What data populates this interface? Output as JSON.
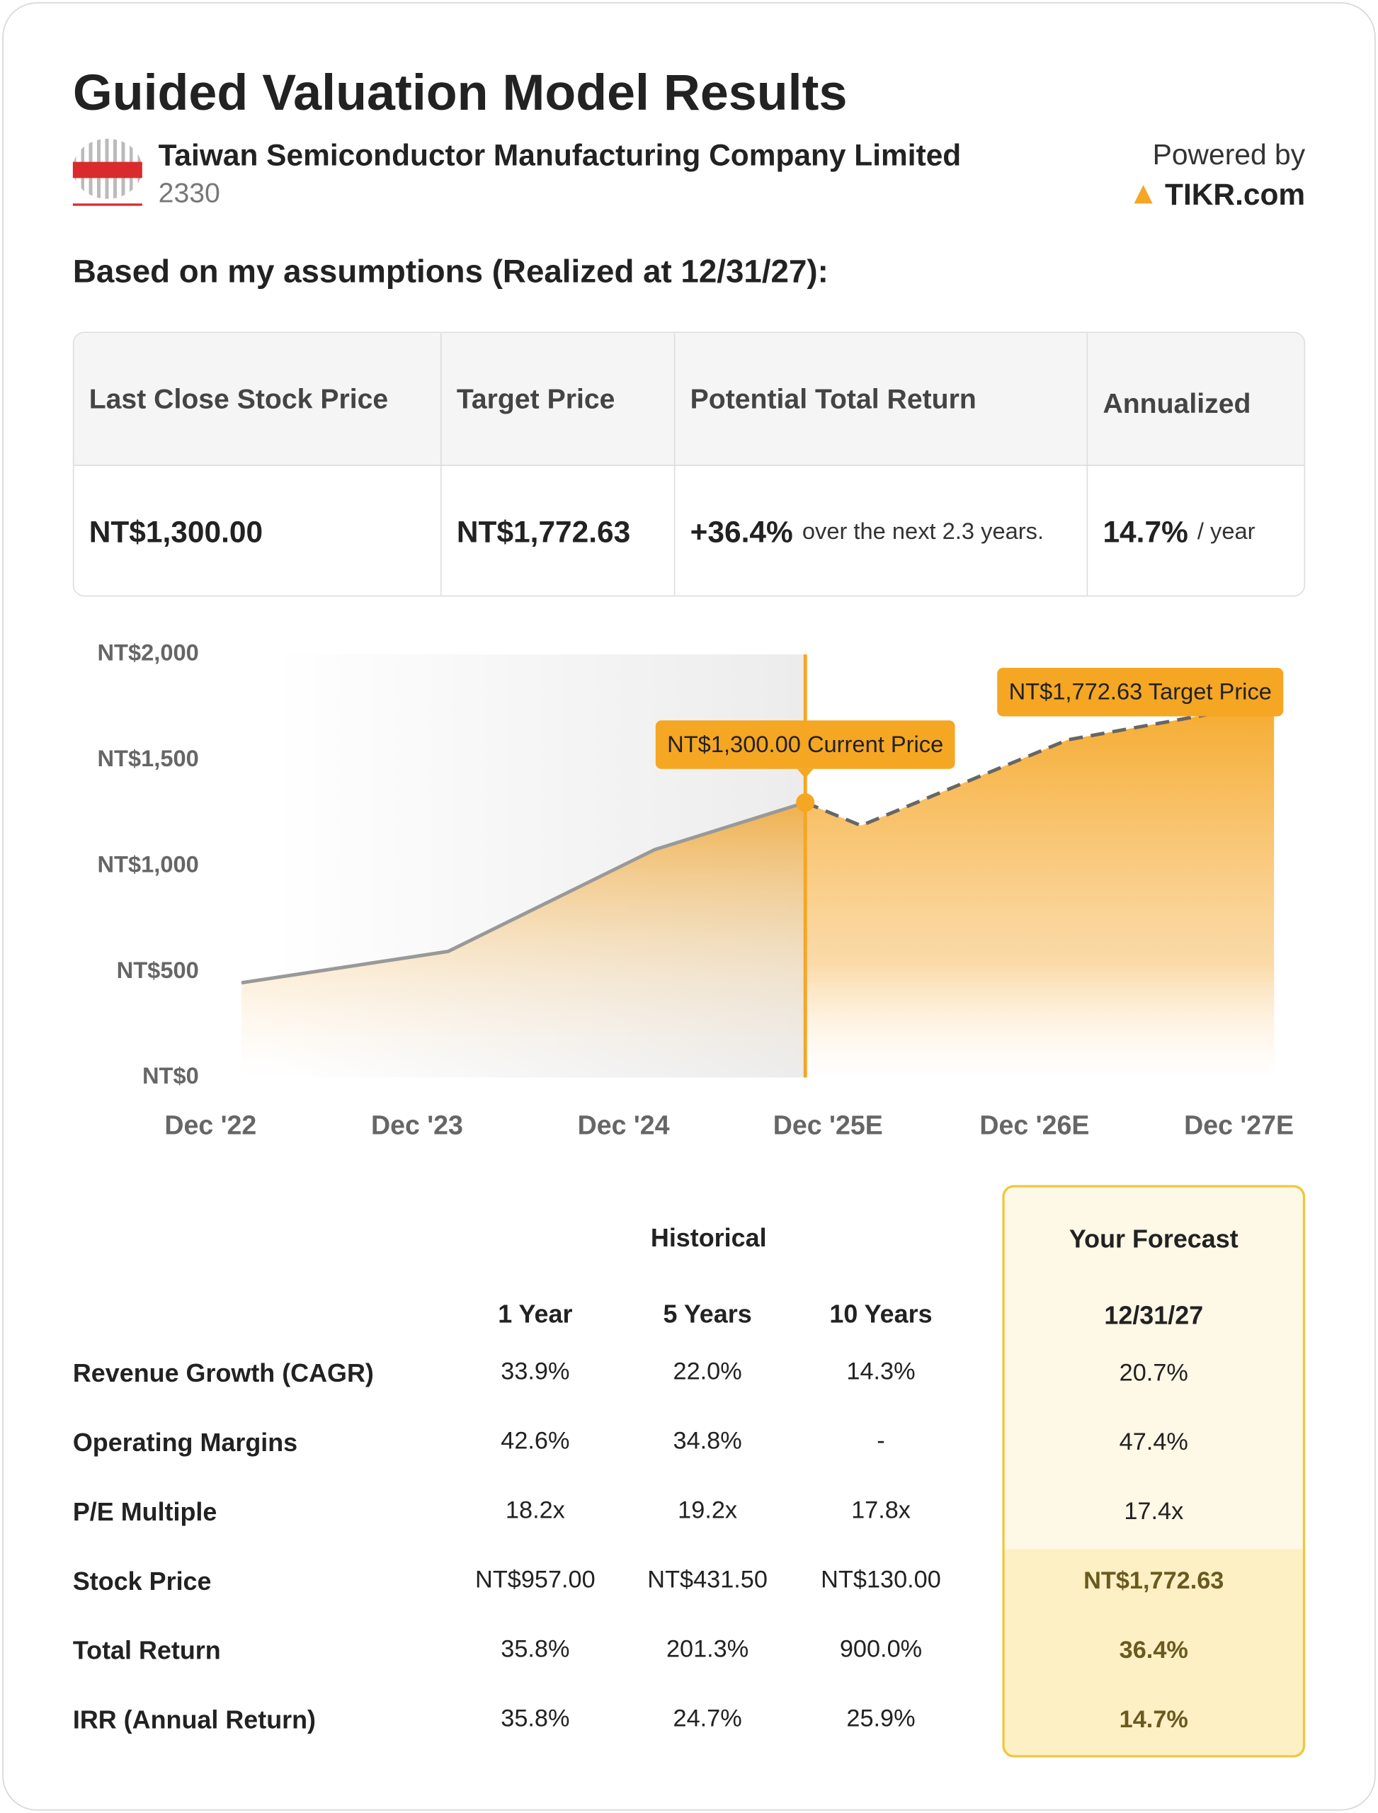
{
  "header": {
    "title": "Guided Valuation Model Results",
    "company": "Taiwan Semiconductor Manufacturing Company Limited",
    "ticker": "2330",
    "powered_by": "Powered by",
    "brand": "TIKR.com"
  },
  "assumptions_heading": "Based on my assumptions (Realized at 12/31/27):",
  "summary": {
    "headers": [
      "Last Close Stock Price",
      "Target Price",
      "Potential Total Return",
      "Annualized"
    ],
    "values": [
      {
        "main": "NT$1,300.00"
      },
      {
        "main": "NT$1,772.63"
      },
      {
        "main": "+36.4%",
        "note": "over the next 2.3 years."
      },
      {
        "main": "14.7%",
        "note": "/ year"
      }
    ]
  },
  "chart_data": {
    "type": "area",
    "x": [
      2022,
      2023,
      2024,
      2024.73,
      2025,
      2026,
      2027
    ],
    "series": [
      {
        "name": "Historical",
        "color": "#999999",
        "values": [
          448,
          596,
          1077,
          1300,
          null,
          null,
          null
        ]
      },
      {
        "name": "Forecast",
        "color": "#666666",
        "values": [
          null,
          null,
          null,
          1300,
          1191,
          1596,
          1772.63
        ]
      }
    ],
    "xlim": [
      2021.8,
      2027.2
    ],
    "xticks": [
      {
        "value": 2021.85,
        "label": "Dec '22"
      },
      {
        "value": 2022.85,
        "label": "Dec '23"
      },
      {
        "value": 2023.85,
        "label": "Dec '24"
      },
      {
        "value": 2024.84,
        "label": "Dec '25E"
      },
      {
        "value": 2025.84,
        "label": "Dec '26E"
      },
      {
        "value": 2026.83,
        "label": "Dec '27E"
      }
    ],
    "ylim": [
      0,
      2000
    ],
    "yticks": [
      {
        "value": 0,
        "label": "NT$0"
      },
      {
        "value": 500,
        "label": "NT$500"
      },
      {
        "value": 1000,
        "label": "NT$1,000"
      },
      {
        "value": 1500,
        "label": "NT$1,500"
      },
      {
        "value": 2000,
        "label": "NT$2,000"
      }
    ],
    "accent": "#f5a623",
    "annotations": [
      {
        "text": "NT$1,300.00 Current Price",
        "x": 2024.73,
        "y": 1300
      },
      {
        "text": "NT$1,772.63 Target Price",
        "x": 2027,
        "y": 1772.63
      }
    ]
  },
  "table": {
    "group_historical": "Historical",
    "group_forecast": "Your Forecast",
    "columns": [
      "1 Year",
      "5 Years",
      "10 Years",
      "12/31/27"
    ],
    "rows": [
      [
        "Revenue Growth (CAGR)",
        "33.9%",
        "22.0%",
        "14.3%",
        "20.7%"
      ],
      [
        "Operating Margins",
        "42.6%",
        "34.8%",
        "-",
        "47.4%"
      ],
      [
        "P/E Multiple",
        "18.2x",
        "19.2x",
        "17.8x",
        "17.4x"
      ],
      [
        "Stock Price",
        "NT$957.00",
        "NT$431.50",
        "NT$130.00",
        "NT$1,772.63"
      ],
      [
        "Total Return",
        "35.8%",
        "201.3%",
        "900.0%",
        "36.4%"
      ],
      [
        "IRR (Annual Return)",
        "35.8%",
        "24.7%",
        "25.9%",
        "14.7%"
      ]
    ]
  }
}
